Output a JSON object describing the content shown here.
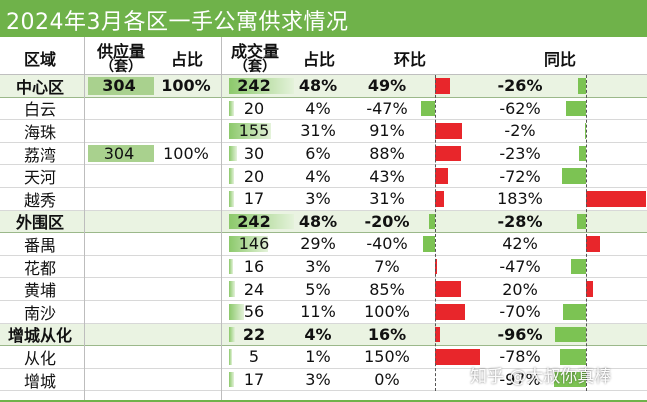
{
  "title": "2024年3月各区一手公寓供求情况",
  "headers": {
    "district": "区域",
    "supply": "供应量",
    "supply_unit": "（套）",
    "supply_share": "占比",
    "sold": "成交量",
    "sold_unit": "（套）",
    "sold_share": "占比",
    "mom": "环比",
    "yoy": "同比"
  },
  "watermark": "知乎 @大叔你真棒",
  "colors": {
    "title_bg": "#6fb24a",
    "summary_bg": "#eaf3e2",
    "positive_bar": "#e8262b",
    "negative_bar": "#7cc353",
    "supply_fill": "#a9d18e"
  },
  "chart_data": {
    "type": "table",
    "columns": [
      "区域",
      "供应量（套）",
      "占比",
      "成交量（套）",
      "占比",
      "环比",
      "同比"
    ],
    "rows": [
      {
        "district": "中心区",
        "summary": true,
        "supply": "304",
        "supply_share": "100%",
        "sold": 242,
        "sold_label": "242",
        "sold_share": "48%",
        "mom": 49,
        "mom_label": "49%",
        "yoy": -26,
        "yoy_label": "-26%"
      },
      {
        "district": "白云",
        "summary": false,
        "supply": "",
        "supply_share": "",
        "sold": 20,
        "sold_label": "20",
        "sold_share": "4%",
        "mom": -47,
        "mom_label": "-47%",
        "yoy": -62,
        "yoy_label": "-62%"
      },
      {
        "district": "海珠",
        "summary": false,
        "supply": "",
        "supply_share": "",
        "sold": 155,
        "sold_label": "155",
        "sold_share": "31%",
        "mom": 91,
        "mom_label": "91%",
        "yoy": -2,
        "yoy_label": "-2%"
      },
      {
        "district": "荔湾",
        "summary": false,
        "supply": "304",
        "supply_share": "100%",
        "sold": 30,
        "sold_label": "30",
        "sold_share": "6%",
        "mom": 88,
        "mom_label": "88%",
        "yoy": -23,
        "yoy_label": "-23%"
      },
      {
        "district": "天河",
        "summary": false,
        "supply": "",
        "supply_share": "",
        "sold": 20,
        "sold_label": "20",
        "sold_share": "4%",
        "mom": 43,
        "mom_label": "43%",
        "yoy": -72,
        "yoy_label": "-72%"
      },
      {
        "district": "越秀",
        "summary": false,
        "supply": "",
        "supply_share": "",
        "sold": 17,
        "sold_label": "17",
        "sold_share": "3%",
        "mom": 31,
        "mom_label": "31%",
        "yoy": 183,
        "yoy_label": "183%"
      },
      {
        "district": "外围区",
        "summary": true,
        "supply": "",
        "supply_share": "",
        "sold": 242,
        "sold_label": "242",
        "sold_share": "48%",
        "mom": -20,
        "mom_label": "-20%",
        "yoy": -28,
        "yoy_label": "-28%"
      },
      {
        "district": "番禺",
        "summary": false,
        "supply": "",
        "supply_share": "",
        "sold": 146,
        "sold_label": "146",
        "sold_share": "29%",
        "mom": -40,
        "mom_label": "-40%",
        "yoy": 42,
        "yoy_label": "42%"
      },
      {
        "district": "花都",
        "summary": false,
        "supply": "",
        "supply_share": "",
        "sold": 16,
        "sold_label": "16",
        "sold_share": "3%",
        "mom": 7,
        "mom_label": "7%",
        "yoy": -47,
        "yoy_label": "-47%"
      },
      {
        "district": "黄埔",
        "summary": false,
        "supply": "",
        "supply_share": "",
        "sold": 24,
        "sold_label": "24",
        "sold_share": "5%",
        "mom": 85,
        "mom_label": "85%",
        "yoy": 20,
        "yoy_label": "20%"
      },
      {
        "district": "南沙",
        "summary": false,
        "supply": "",
        "supply_share": "",
        "sold": 56,
        "sold_label": "56",
        "sold_share": "11%",
        "mom": 100,
        "mom_label": "100%",
        "yoy": -70,
        "yoy_label": "-70%"
      },
      {
        "district": "增城从化",
        "summary": true,
        "supply": "",
        "supply_share": "",
        "sold": 22,
        "sold_label": "22",
        "sold_share": "4%",
        "mom": 16,
        "mom_label": "16%",
        "yoy": -96,
        "yoy_label": "-96%"
      },
      {
        "district": "从化",
        "summary": false,
        "supply": "",
        "supply_share": "",
        "sold": 5,
        "sold_label": "5",
        "sold_share": "1%",
        "mom": 150,
        "mom_label": "150%",
        "yoy": -78,
        "yoy_label": "-78%"
      },
      {
        "district": "增城",
        "summary": false,
        "supply": "",
        "supply_share": "",
        "sold": 17,
        "sold_label": "17",
        "sold_share": "3%",
        "mom": 0,
        "mom_label": "0%",
        "yoy": -97,
        "yoy_label": "-97%"
      }
    ]
  }
}
